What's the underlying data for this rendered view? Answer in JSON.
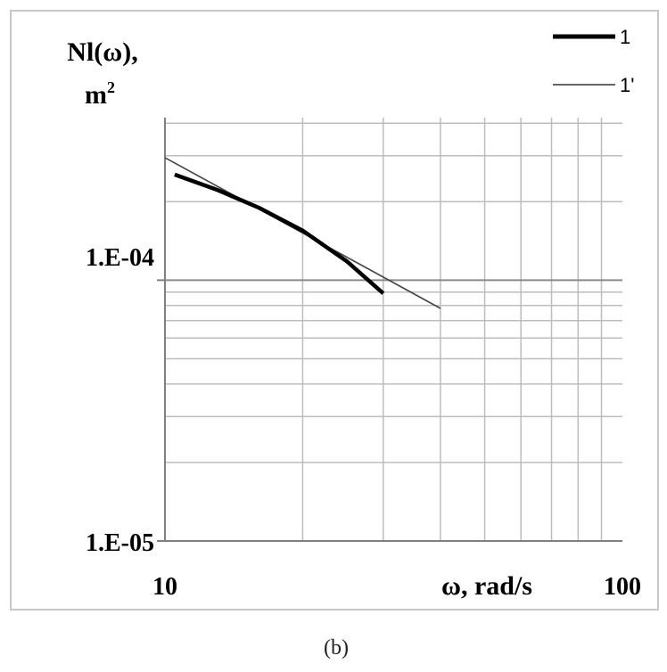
{
  "chart_data": {
    "type": "line",
    "title": "",
    "xlabel": "ω, rad/s",
    "ylabel_line1": "Nl(ω),",
    "ylabel_line2": "m",
    "ylabel_sup": "2",
    "xscale": "log",
    "yscale": "log",
    "xlim": [
      10,
      100
    ],
    "ylim": [
      1e-05,
      0.00042
    ],
    "x_tick_labels": [
      "10",
      "100"
    ],
    "y_tick_labels": [
      "1.E-05",
      "1.E-04"
    ],
    "grid": true,
    "legend_position": "top-right",
    "series": [
      {
        "name": "1",
        "x": [
          10.5,
          13,
          16,
          20,
          25,
          30
        ],
        "y": [
          0.000254,
          0.000222,
          0.00019,
          0.000155,
          0.000118,
          8.9e-05
        ]
      },
      {
        "name": "1'",
        "x": [
          10,
          40
        ],
        "y": [
          0.000295,
          7.8e-05
        ]
      }
    ]
  },
  "caption": "(b)"
}
